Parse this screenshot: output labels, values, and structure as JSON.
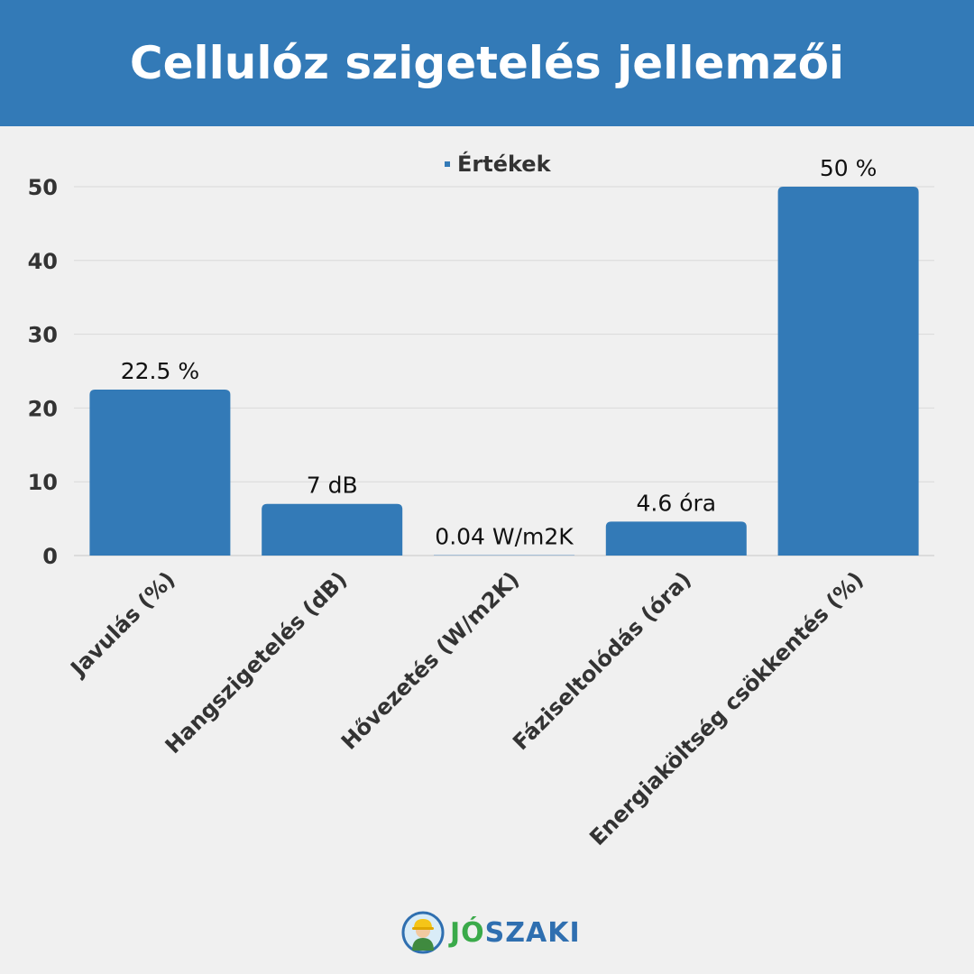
{
  "header": {
    "title": "Cellulóz szigetelés jellemzői"
  },
  "chart_data": {
    "type": "bar",
    "title": "Cellulóz szigetelés jellemzői",
    "categories": [
      "Javulás (%)",
      "Hangszigetelés (dB)",
      "Hővezetés (W/m2K)",
      "Fáziseltolódás (óra)",
      "Energiaköltség csökkentés (%)"
    ],
    "series": [
      {
        "name": "Értékek",
        "values": [
          22.5,
          7,
          0.04,
          4.6,
          50
        ]
      }
    ],
    "data_labels": [
      "22.5 %",
      "7 dB",
      "0.04 W/m2K",
      "4.6 óra",
      "50 %"
    ],
    "yticks": [
      "0",
      "10",
      "20",
      "30",
      "40",
      "50"
    ],
    "ylim": [
      0,
      50
    ],
    "grid": true,
    "legend_position": "top-center",
    "color": "#337ab7"
  },
  "logo": {
    "part1": "JÓ",
    "part2": "SZAKI"
  }
}
